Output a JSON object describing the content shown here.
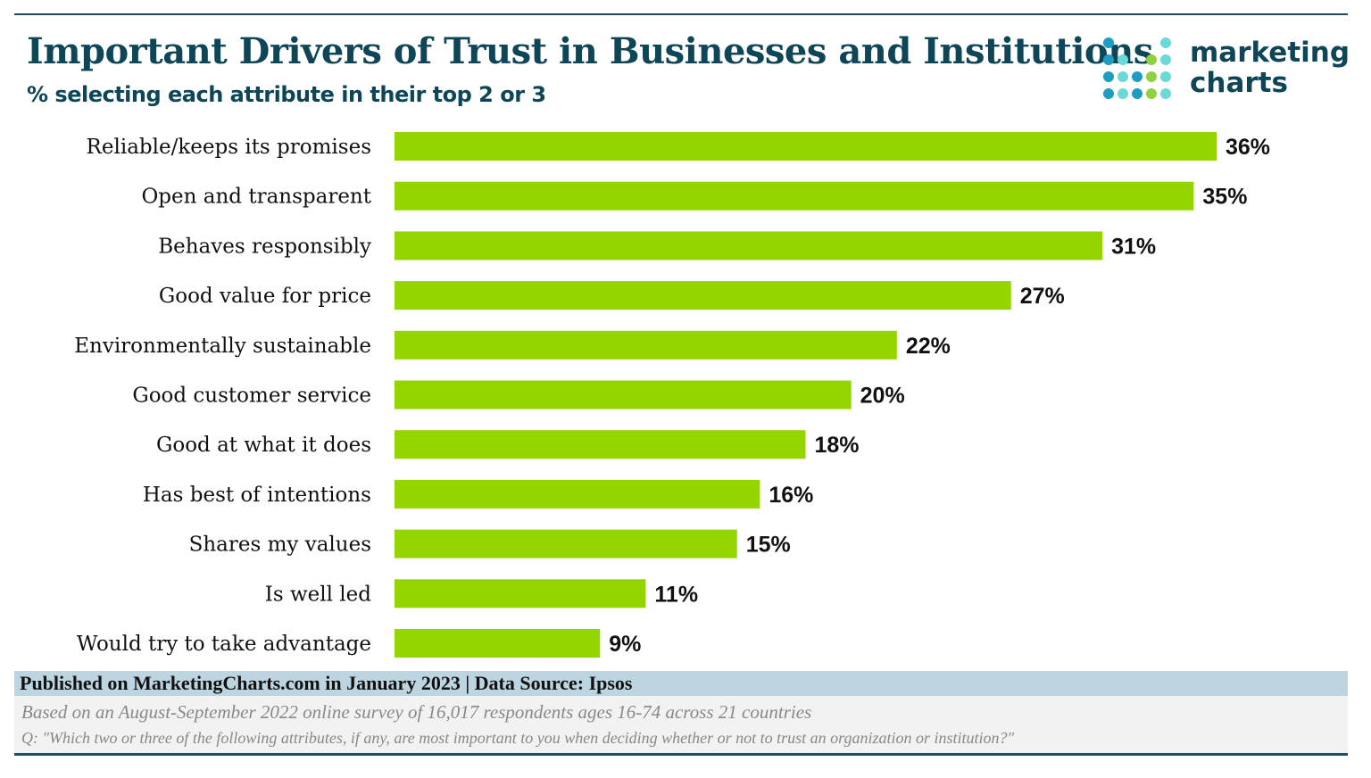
{
  "header": {
    "title": "Important Drivers of Trust in Businesses and Institutions",
    "subtitle": "% selecting each attribute in their top 2 or 3",
    "logo_text": [
      "marketing",
      "charts"
    ]
  },
  "chart_data": {
    "type": "bar",
    "orientation": "horizontal",
    "title": "Important Drivers of Trust in Businesses and Institutions",
    "subtitle": "% selecting each attribute in their top 2 or 3",
    "categories": [
      "Reliable/keeps its promises",
      "Open and transparent",
      "Behaves responsibly",
      "Good value for price",
      "Environmentally sustainable",
      "Good customer service",
      "Good at what it does",
      "Has best of intentions",
      "Shares my values",
      "Is well led",
      "Would try to take advantage"
    ],
    "values": [
      36,
      35,
      31,
      27,
      22,
      20,
      18,
      16,
      15,
      11,
      9
    ],
    "labels": [
      "36%",
      "35%",
      "31%",
      "27%",
      "22%",
      "20%",
      "18%",
      "16%",
      "15%",
      "11%",
      "9%"
    ],
    "unit": "%",
    "xlim": [
      0,
      36
    ],
    "grid": false,
    "bar_color": "#94d500"
  },
  "footer": {
    "published": "Published on MarketingCharts.com in January 2023 | Data Source: Ipsos",
    "note": "Based on an August-September 2022 online survey of 16,017 respondents ages 16-74 across 21 countries",
    "question": "Q: \"Which two or three of the following attributes, if any, are most important to you when deciding whether or not to trust an organization or institution?\""
  },
  "colors": {
    "title": "#0e4658",
    "bar": "#94d500",
    "footer_band": "#bcd5e0",
    "logo_blue": "#1b9ec2",
    "logo_teal": "#6bd9d9",
    "logo_green": "#8fd13f"
  }
}
